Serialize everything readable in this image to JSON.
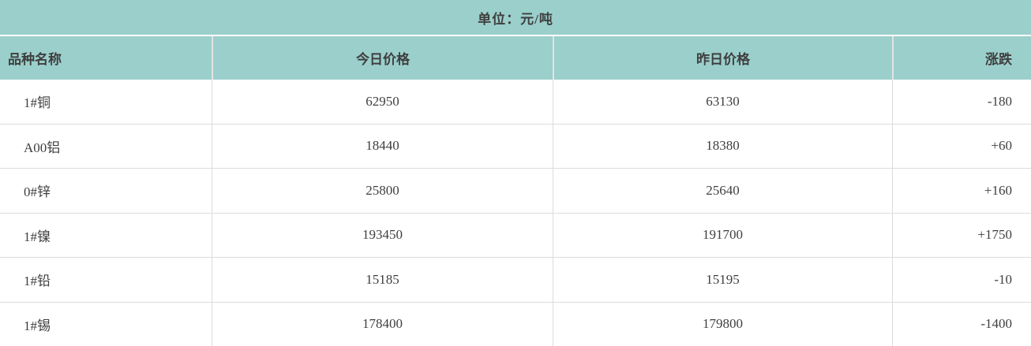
{
  "title_bar": {
    "text": "单位：元/吨"
  },
  "chart_data": {
    "type": "table",
    "title": "单位：元/吨",
    "columns": [
      "品种名称",
      "今日价格",
      "昨日价格",
      "涨跌"
    ],
    "rows": [
      [
        "1#铜",
        "62950",
        "63130",
        "-180"
      ],
      [
        "A00铝",
        "18440",
        "18380",
        "+60"
      ],
      [
        "0#锌",
        "25800",
        "25640",
        "+160"
      ],
      [
        "1#镍",
        "193450",
        "191700",
        "+1750"
      ],
      [
        "1#铅",
        "15185",
        "15195",
        "-10"
      ],
      [
        "1#锡",
        "178400",
        "179800",
        "-1400"
      ]
    ],
    "layout": {
      "title_position": "top-center",
      "name_column_align": "left",
      "price_columns_align": "center",
      "change_column_align": "right",
      "grid": "on"
    }
  },
  "colors": {
    "header_background": "#9bcfcb",
    "body_background": "#ffffff",
    "text": "#3f3f3f",
    "grid_line": "#dcdcdc"
  }
}
